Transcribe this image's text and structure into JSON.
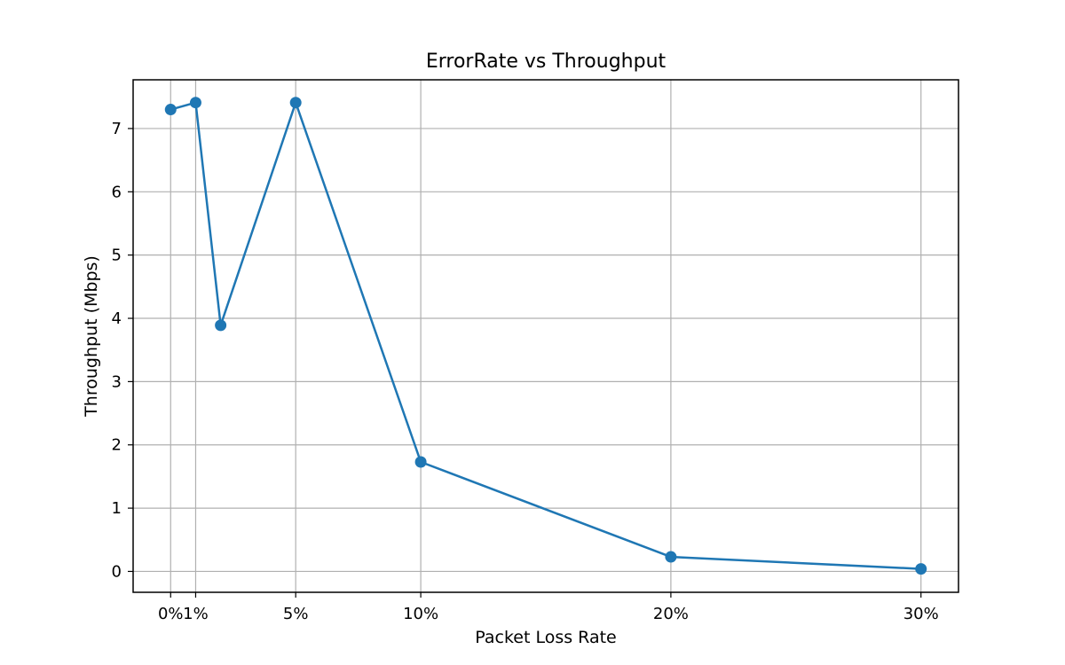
{
  "chart_data": {
    "type": "line",
    "title": "ErrorRate vs Throughput",
    "xlabel": "Packet Loss Rate",
    "ylabel": "Throughput (Mbps)",
    "x_ticks": [
      {
        "value": 0,
        "label": "0%"
      },
      {
        "value": 1,
        "label": "1%"
      },
      {
        "value": 5,
        "label": "5%"
      },
      {
        "value": 10,
        "label": "10%"
      },
      {
        "value": 20,
        "label": "20%"
      },
      {
        "value": 30,
        "label": "30%"
      }
    ],
    "y_ticks": [
      0,
      1,
      2,
      3,
      4,
      5,
      6,
      7
    ],
    "xlim": [
      -1.5,
      31.5
    ],
    "ylim": [
      -0.33,
      7.77
    ],
    "grid": true,
    "series": [
      {
        "color": "#1f77b4",
        "marker": "circle",
        "x": [
          0,
          1,
          2,
          5,
          10,
          20,
          30
        ],
        "y": [
          7.3,
          7.41,
          3.89,
          7.41,
          1.73,
          0.23,
          0.04
        ]
      }
    ]
  }
}
